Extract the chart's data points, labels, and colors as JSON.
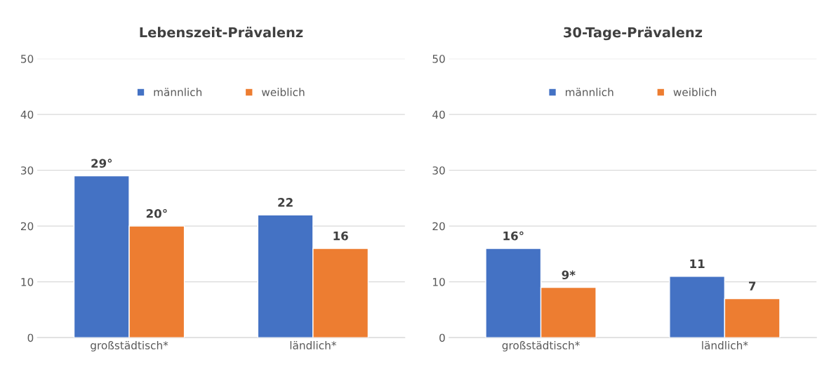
{
  "chart_data": [
    {
      "type": "bar",
      "title": "Lebenszeit-Prävalenz",
      "categories": [
        "großstädtisch*",
        "ländlich*"
      ],
      "ylim": [
        0,
        50
      ],
      "yticks": [
        0,
        10,
        20,
        30,
        40,
        50
      ],
      "grid": "y",
      "legend": "top",
      "series": [
        {
          "name": "männlich",
          "color": "#4472c4",
          "values": [
            29,
            22
          ],
          "value_labels": [
            "29°",
            "22"
          ]
        },
        {
          "name": "weiblich",
          "color": "#ed7d31",
          "values": [
            20,
            16
          ],
          "value_labels": [
            "20°",
            "16"
          ]
        }
      ]
    },
    {
      "type": "bar",
      "title": "30-Tage-Prävalenz",
      "categories": [
        "großstädtisch*",
        "ländlich*"
      ],
      "ylim": [
        0,
        50
      ],
      "yticks": [
        0,
        10,
        20,
        30,
        40,
        50
      ],
      "grid": "y",
      "legend": "top",
      "series": [
        {
          "name": "männlich",
          "color": "#4472c4",
          "values": [
            16,
            11
          ],
          "value_labels": [
            "16°",
            "11"
          ]
        },
        {
          "name": "weiblich",
          "color": "#ed7d31",
          "values": [
            9,
            7
          ],
          "value_labels": [
            "9*",
            "7"
          ]
        }
      ]
    }
  ]
}
